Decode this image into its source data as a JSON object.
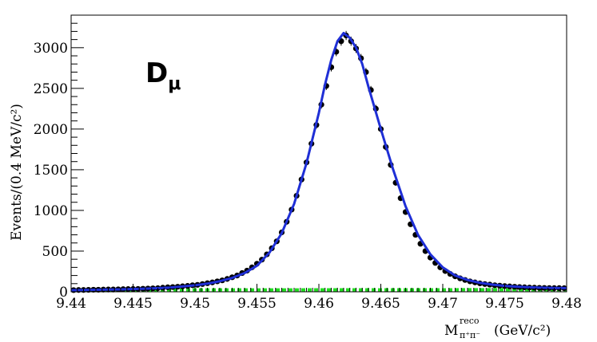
{
  "chart_data": {
    "type": "scatter",
    "annotation": {
      "main": "D",
      "sub": "μ"
    },
    "xlabel": {
      "base": "M",
      "sup": "reco",
      "sub": "π⁺π⁻",
      "unit": "(GeV/c²)"
    },
    "ylabel": "Events/(0.4 MeV/c²)",
    "xlim": [
      9.44,
      9.48
    ],
    "ylim": [
      0,
      3400
    ],
    "x_ticks": [
      9.44,
      9.445,
      9.45,
      9.455,
      9.46,
      9.465,
      9.47,
      9.475,
      9.48
    ],
    "x_tick_labels": [
      "9.44",
      "9.445",
      "9.45",
      "9.455",
      "9.46",
      "9.465",
      "9.47",
      "9.475",
      "9.48"
    ],
    "y_ticks": [
      0,
      500,
      1000,
      1500,
      2000,
      2500,
      3000
    ],
    "y_tick_labels": [
      "0",
      "500",
      "1000",
      "1500",
      "2000",
      "2500",
      "3000"
    ],
    "colors": {
      "data": "#000000",
      "fit": "#1f2fd6",
      "background": "#22dd22"
    },
    "series": [
      {
        "kind": "data_points",
        "points": [
          [
            9.4402,
            20
          ],
          [
            9.4406,
            22
          ],
          [
            9.441,
            22
          ],
          [
            9.4414,
            24
          ],
          [
            9.4418,
            25
          ],
          [
            9.4422,
            25
          ],
          [
            9.4426,
            27
          ],
          [
            9.443,
            28
          ],
          [
            9.4434,
            28
          ],
          [
            9.4438,
            30
          ],
          [
            9.4442,
            32
          ],
          [
            9.4446,
            33
          ],
          [
            9.445,
            34
          ],
          [
            9.4454,
            35
          ],
          [
            9.4458,
            37
          ],
          [
            9.4462,
            40
          ],
          [
            9.4466,
            42
          ],
          [
            9.447,
            44
          ],
          [
            9.4474,
            50
          ],
          [
            9.4478,
            55
          ],
          [
            9.4482,
            58
          ],
          [
            9.4486,
            62
          ],
          [
            9.449,
            67
          ],
          [
            9.4494,
            72
          ],
          [
            9.4498,
            80
          ],
          [
            9.4502,
            85
          ],
          [
            9.4506,
            95
          ],
          [
            9.451,
            105
          ],
          [
            9.4514,
            115
          ],
          [
            9.4518,
            128
          ],
          [
            9.4522,
            140
          ],
          [
            9.4526,
            158
          ],
          [
            9.453,
            178
          ],
          [
            9.4534,
            200
          ],
          [
            9.4538,
            230
          ],
          [
            9.4542,
            260
          ],
          [
            9.4546,
            300
          ],
          [
            9.455,
            345
          ],
          [
            9.4554,
            395
          ],
          [
            9.4558,
            460
          ],
          [
            9.4562,
            535
          ],
          [
            9.4566,
            620
          ],
          [
            9.457,
            730
          ],
          [
            9.4574,
            860
          ],
          [
            9.4578,
            1010
          ],
          [
            9.4582,
            1180
          ],
          [
            9.4586,
            1380
          ],
          [
            9.459,
            1590
          ],
          [
            9.4594,
            1820
          ],
          [
            9.4598,
            2050
          ],
          [
            9.4602,
            2300
          ],
          [
            9.4606,
            2530
          ],
          [
            9.461,
            2760
          ],
          [
            9.4614,
            2950
          ],
          [
            9.4618,
            3080
          ],
          [
            9.4622,
            3150
          ],
          [
            9.4626,
            3080
          ],
          [
            9.463,
            2990
          ],
          [
            9.4634,
            2870
          ],
          [
            9.4638,
            2700
          ],
          [
            9.4642,
            2480
          ],
          [
            9.4646,
            2250
          ],
          [
            9.465,
            2000
          ],
          [
            9.4654,
            1780
          ],
          [
            9.4658,
            1560
          ],
          [
            9.4662,
            1340
          ],
          [
            9.4666,
            1150
          ],
          [
            9.467,
            980
          ],
          [
            9.4674,
            830
          ],
          [
            9.4678,
            700
          ],
          [
            9.4682,
            590
          ],
          [
            9.4686,
            500
          ],
          [
            9.469,
            420
          ],
          [
            9.4694,
            355
          ],
          [
            9.4698,
            300
          ],
          [
            9.4702,
            255
          ],
          [
            9.4706,
            220
          ],
          [
            9.471,
            190
          ],
          [
            9.4714,
            165
          ],
          [
            9.4718,
            145
          ],
          [
            9.4722,
            128
          ],
          [
            9.4726,
            115
          ],
          [
            9.473,
            103
          ],
          [
            9.4734,
            95
          ],
          [
            9.4738,
            88
          ],
          [
            9.4742,
            80
          ],
          [
            9.4746,
            75
          ],
          [
            9.475,
            70
          ],
          [
            9.4754,
            66
          ],
          [
            9.4758,
            62
          ],
          [
            9.4762,
            58
          ],
          [
            9.4766,
            55
          ],
          [
            9.477,
            52
          ],
          [
            9.4774,
            50
          ],
          [
            9.4778,
            48
          ],
          [
            9.4782,
            47
          ],
          [
            9.4786,
            46
          ],
          [
            9.479,
            45
          ],
          [
            9.4794,
            45
          ],
          [
            9.4798,
            44
          ]
        ]
      },
      {
        "kind": "fit_curve",
        "points": [
          [
            9.44,
            20
          ],
          [
            9.442,
            24
          ],
          [
            9.444,
            30
          ],
          [
            9.446,
            38
          ],
          [
            9.448,
            52
          ],
          [
            9.45,
            80
          ],
          [
            9.451,
            100
          ],
          [
            9.452,
            130
          ],
          [
            9.453,
            170
          ],
          [
            9.454,
            230
          ],
          [
            9.455,
            320
          ],
          [
            9.456,
            480
          ],
          [
            9.457,
            720
          ],
          [
            9.458,
            1080
          ],
          [
            9.459,
            1580
          ],
          [
            9.46,
            2200
          ],
          [
            9.4605,
            2550
          ],
          [
            9.461,
            2850
          ],
          [
            9.4615,
            3080
          ],
          [
            9.462,
            3180
          ],
          [
            9.4625,
            3120
          ],
          [
            9.463,
            3000
          ],
          [
            9.4635,
            2800
          ],
          [
            9.464,
            2520
          ],
          [
            9.465,
            2000
          ],
          [
            9.466,
            1500
          ],
          [
            9.467,
            1050
          ],
          [
            9.468,
            700
          ],
          [
            9.469,
            460
          ],
          [
            9.47,
            300
          ],
          [
            9.471,
            200
          ],
          [
            9.472,
            145
          ],
          [
            9.473,
            110
          ],
          [
            9.474,
            88
          ],
          [
            9.475,
            72
          ],
          [
            9.476,
            62
          ],
          [
            9.477,
            55
          ],
          [
            9.478,
            50
          ],
          [
            9.479,
            47
          ],
          [
            9.48,
            45
          ]
        ]
      },
      {
        "kind": "background_curve",
        "points": [
          [
            9.44,
            22
          ],
          [
            9.48,
            26
          ]
        ]
      }
    ]
  }
}
